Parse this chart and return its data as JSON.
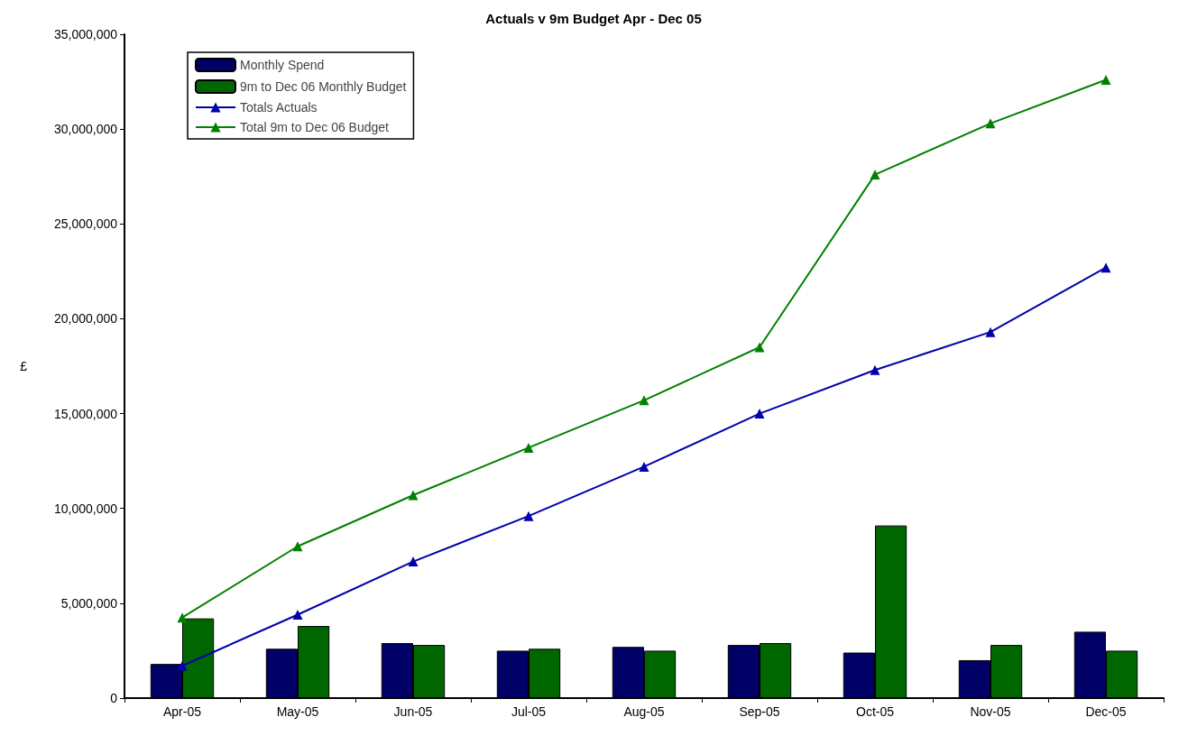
{
  "chart_data": {
    "type": "bar",
    "title": "Actuals v 9m Budget Apr - Dec 05",
    "ylabel": "£",
    "categories": [
      "Apr-05",
      "May-05",
      "Jun-05",
      "Jul-05",
      "Aug-05",
      "Sep-05",
      "Oct-05",
      "Nov-05",
      "Dec-05"
    ],
    "series": [
      {
        "name": "Monthly Spend",
        "color": "#000066",
        "values": [
          1800000,
          2600000,
          2900000,
          2500000,
          2700000,
          2800000,
          2400000,
          2000000,
          3500000
        ]
      },
      {
        "name": "9m to Dec 06 Monthly Budget",
        "color": "#006600",
        "values": [
          4200000,
          3800000,
          2800000,
          2600000,
          2500000,
          2900000,
          9100000,
          2800000,
          2500000
        ]
      },
      {
        "name": "Totals Actuals",
        "type": "line",
        "color": "#0000aa",
        "values": [
          1700000,
          4400000,
          7200000,
          9600000,
          12200000,
          15000000,
          17300000,
          19300000,
          22700000
        ]
      },
      {
        "name": "Total 9m to Dec 06 Budget",
        "type": "line",
        "color": "#008000",
        "values": [
          4250000,
          8000000,
          10700000,
          13200000,
          15700000,
          18500000,
          27600000,
          30300000,
          32600000
        ]
      }
    ],
    "ylim": [
      0,
      35000000
    ],
    "yticks": [
      0,
      {
        "value": 5000000,
        "label": "5,000,000"
      },
      {
        "value": 10000000,
        "label": "10,000,000"
      },
      {
        "value": 15000000,
        "label": "15,000,000"
      },
      {
        "value": 20000000,
        "label": "20,000,000"
      },
      {
        "value": 25000000,
        "label": "25,000,000"
      },
      {
        "value": 30000000,
        "label": "30,000,000"
      },
      {
        "value": 35000000,
        "label": "35,000,000"
      }
    ],
    "grid": false,
    "legend": "top left",
    "marker": "triangle",
    "line_style": "solid"
  }
}
